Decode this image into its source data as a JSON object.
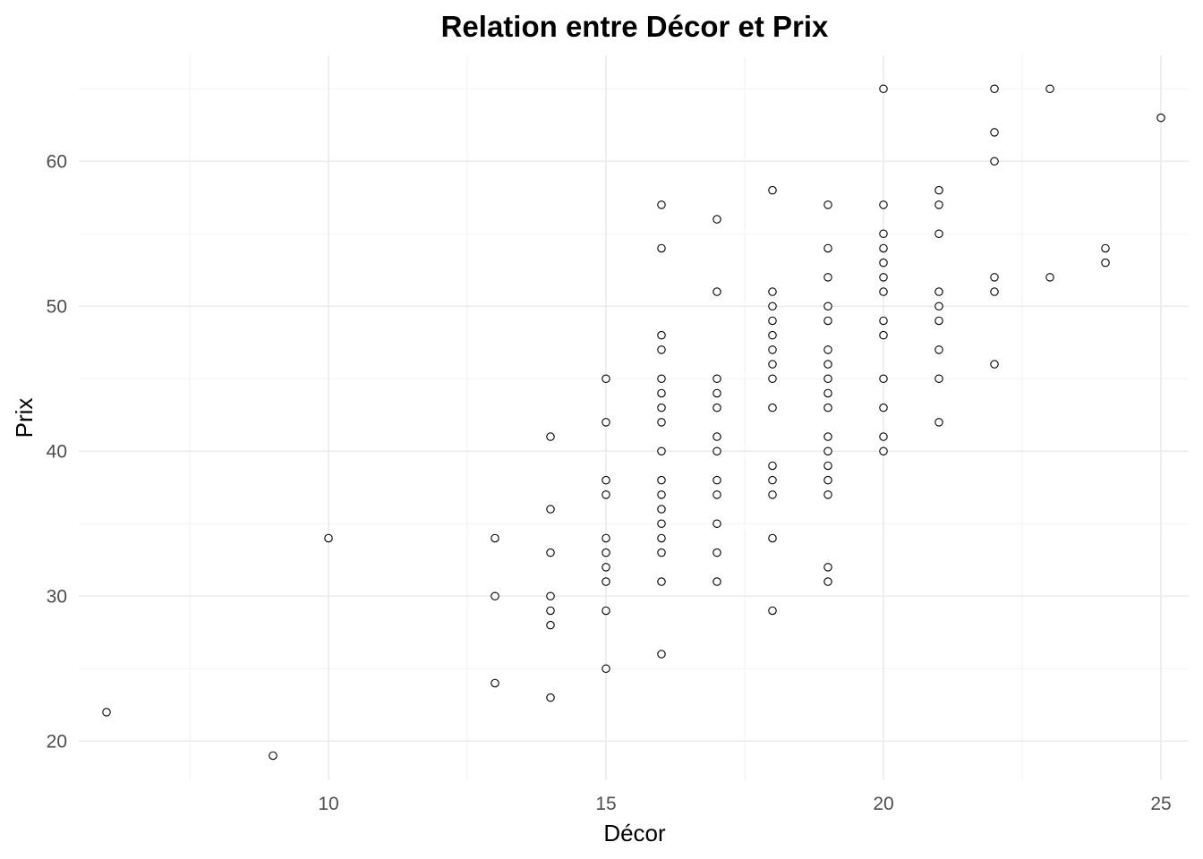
{
  "chart_data": {
    "type": "scatter",
    "title": "Relation entre Décor et Prix",
    "xlabel": "Décor",
    "ylabel": "Prix",
    "xlim": [
      5.5,
      25.5
    ],
    "ylim": [
      17.3,
      67.3
    ],
    "x_ticks": [
      10,
      15,
      20,
      25
    ],
    "y_ticks": [
      20,
      30,
      40,
      50,
      60
    ],
    "grid": true,
    "point_style": "open-circle",
    "points": [
      [
        6,
        22
      ],
      [
        9,
        19
      ],
      [
        10,
        34
      ],
      [
        13,
        34
      ],
      [
        13,
        30
      ],
      [
        13,
        24
      ],
      [
        14,
        41
      ],
      [
        14,
        36
      ],
      [
        14,
        33
      ],
      [
        14,
        30
      ],
      [
        14,
        29
      ],
      [
        14,
        28
      ],
      [
        14,
        23
      ],
      [
        15,
        45
      ],
      [
        15,
        42
      ],
      [
        15,
        38
      ],
      [
        15,
        37
      ],
      [
        15,
        34
      ],
      [
        15,
        33
      ],
      [
        15,
        32
      ],
      [
        15,
        31
      ],
      [
        15,
        29
      ],
      [
        15,
        25
      ],
      [
        16,
        57
      ],
      [
        16,
        54
      ],
      [
        16,
        48
      ],
      [
        16,
        47
      ],
      [
        16,
        45
      ],
      [
        16,
        44
      ],
      [
        16,
        43
      ],
      [
        16,
        42
      ],
      [
        16,
        40
      ],
      [
        16,
        38
      ],
      [
        16,
        37
      ],
      [
        16,
        36
      ],
      [
        16,
        35
      ],
      [
        16,
        34
      ],
      [
        16,
        33
      ],
      [
        16,
        31
      ],
      [
        16,
        26
      ],
      [
        17,
        56
      ],
      [
        17,
        51
      ],
      [
        17,
        45
      ],
      [
        17,
        44
      ],
      [
        17,
        43
      ],
      [
        17,
        41
      ],
      [
        17,
        40
      ],
      [
        17,
        38
      ],
      [
        17,
        37
      ],
      [
        17,
        35
      ],
      [
        17,
        33
      ],
      [
        17,
        31
      ],
      [
        18,
        58
      ],
      [
        18,
        51
      ],
      [
        18,
        50
      ],
      [
        18,
        49
      ],
      [
        18,
        48
      ],
      [
        18,
        47
      ],
      [
        18,
        46
      ],
      [
        18,
        45
      ],
      [
        18,
        43
      ],
      [
        18,
        39
      ],
      [
        18,
        38
      ],
      [
        18,
        37
      ],
      [
        18,
        34
      ],
      [
        18,
        29
      ],
      [
        19,
        57
      ],
      [
        19,
        54
      ],
      [
        19,
        52
      ],
      [
        19,
        50
      ],
      [
        19,
        49
      ],
      [
        19,
        47
      ],
      [
        19,
        46
      ],
      [
        19,
        45
      ],
      [
        19,
        44
      ],
      [
        19,
        43
      ],
      [
        19,
        41
      ],
      [
        19,
        40
      ],
      [
        19,
        39
      ],
      [
        19,
        38
      ],
      [
        19,
        37
      ],
      [
        19,
        32
      ],
      [
        19,
        31
      ],
      [
        20,
        65
      ],
      [
        20,
        57
      ],
      [
        20,
        55
      ],
      [
        20,
        54
      ],
      [
        20,
        53
      ],
      [
        20,
        52
      ],
      [
        20,
        51
      ],
      [
        20,
        49
      ],
      [
        20,
        48
      ],
      [
        20,
        45
      ],
      [
        20,
        43
      ],
      [
        20,
        41
      ],
      [
        20,
        40
      ],
      [
        21,
        58
      ],
      [
        21,
        57
      ],
      [
        21,
        55
      ],
      [
        21,
        51
      ],
      [
        21,
        50
      ],
      [
        21,
        49
      ],
      [
        21,
        47
      ],
      [
        21,
        45
      ],
      [
        21,
        42
      ],
      [
        22,
        65
      ],
      [
        22,
        62
      ],
      [
        22,
        60
      ],
      [
        22,
        52
      ],
      [
        22,
        51
      ],
      [
        22,
        46
      ],
      [
        23,
        65
      ],
      [
        23,
        52
      ],
      [
        24,
        54
      ],
      [
        24,
        53
      ],
      [
        25,
        63
      ]
    ]
  }
}
